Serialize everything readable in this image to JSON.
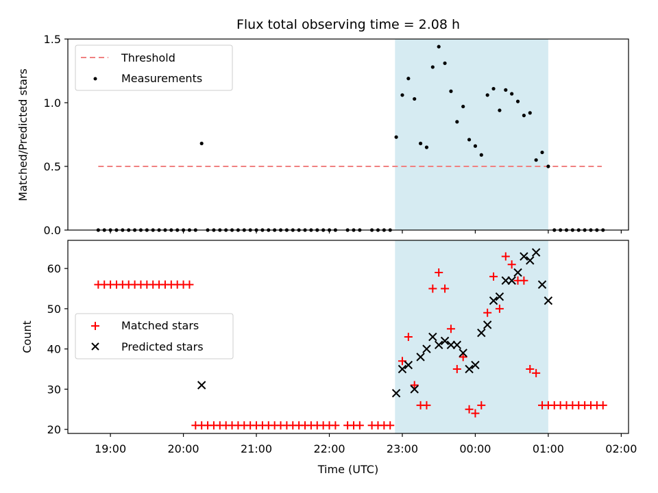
{
  "chart_data": [
    {
      "type": "scatter",
      "title": "Flux total observing time = 2.08 h",
      "xlabel": "",
      "ylabel": "Matched/Predicted stars",
      "ylim": [
        0,
        1.5
      ],
      "yticks": [
        "0.0",
        "0.5",
        "1.0",
        "1.5"
      ],
      "shaded_region": {
        "x_start": "22:54",
        "x_end": "01:00",
        "color": "#add8e6"
      },
      "legend": {
        "position": "top-left"
      },
      "series": [
        {
          "name": "Threshold",
          "style": "dashed-line",
          "color": "#f08080",
          "x": [
            "18:50",
            "01:44"
          ],
          "y": [
            0.5,
            0.5
          ]
        },
        {
          "name": "Measurements",
          "style": "dot",
          "color": "#000000",
          "x": [
            "18:50",
            "18:55",
            "19:00",
            "19:05",
            "19:10",
            "19:15",
            "19:20",
            "19:25",
            "19:30",
            "19:35",
            "19:40",
            "19:45",
            "19:50",
            "19:55",
            "20:00",
            "20:05",
            "20:10",
            "20:15",
            "20:20",
            "20:25",
            "20:30",
            "20:35",
            "20:40",
            "20:45",
            "20:50",
            "20:55",
            "21:00",
            "21:05",
            "21:10",
            "21:15",
            "21:20",
            "21:25",
            "21:30",
            "21:35",
            "21:40",
            "21:45",
            "21:50",
            "21:55",
            "22:00",
            "22:05",
            "22:15",
            "22:20",
            "22:25",
            "22:35",
            "22:40",
            "22:45",
            "22:50",
            "22:55",
            "23:00",
            "23:05",
            "23:10",
            "23:15",
            "23:20",
            "23:25",
            "23:30",
            "23:35",
            "23:40",
            "23:45",
            "23:50",
            "23:55",
            "00:00",
            "00:05",
            "00:10",
            "00:15",
            "00:20",
            "00:25",
            "00:30",
            "00:35",
            "00:40",
            "00:45",
            "00:50",
            "00:55",
            "01:00",
            "01:05",
            "01:10",
            "01:15",
            "01:20",
            "01:25",
            "01:30",
            "01:35",
            "01:40",
            "01:45"
          ],
          "y": [
            0,
            0,
            0,
            0,
            0,
            0,
            0,
            0,
            0,
            0,
            0,
            0,
            0,
            0,
            0,
            0,
            0,
            0.68,
            0,
            0,
            0,
            0,
            0,
            0,
            0,
            0,
            0,
            0,
            0,
            0,
            0,
            0,
            0,
            0,
            0,
            0,
            0,
            0,
            0,
            0,
            0,
            0,
            0,
            0,
            0,
            0,
            0,
            0.73,
            1.06,
            1.19,
            1.03,
            0.68,
            0.65,
            1.28,
            1.44,
            1.31,
            1.09,
            0.85,
            0.97,
            0.71,
            0.66,
            0.59,
            1.06,
            1.11,
            0.94,
            1.1,
            1.07,
            1.01,
            0.9,
            0.92,
            0.55,
            0.61,
            0.5,
            0,
            0,
            0,
            0,
            0,
            0,
            0,
            0,
            0
          ]
        }
      ]
    },
    {
      "type": "scatter",
      "title": "",
      "xlabel": "Time (UTC)",
      "ylabel": "Count",
      "ylim": [
        19,
        67
      ],
      "yticks": [
        "20",
        "30",
        "40",
        "50",
        "60"
      ],
      "xticks": [
        "19:00",
        "20:00",
        "21:00",
        "22:00",
        "23:00",
        "00:00",
        "01:00",
        "02:00"
      ],
      "xlim": [
        "18:25",
        "02:06"
      ],
      "shaded_region": {
        "x_start": "22:54",
        "x_end": "01:00",
        "color": "#add8e6"
      },
      "legend": {
        "position": "center-left"
      },
      "series": [
        {
          "name": "Matched stars",
          "marker": "plus",
          "color": "#ff0000",
          "x": [
            "18:50",
            "18:55",
            "19:00",
            "19:05",
            "19:10",
            "19:15",
            "19:20",
            "19:25",
            "19:30",
            "19:35",
            "19:40",
            "19:45",
            "19:50",
            "19:55",
            "20:00",
            "20:05",
            "20:10",
            "20:15",
            "20:20",
            "20:25",
            "20:30",
            "20:35",
            "20:40",
            "20:45",
            "20:50",
            "20:55",
            "21:00",
            "21:05",
            "21:10",
            "21:15",
            "21:20",
            "21:25",
            "21:30",
            "21:35",
            "21:40",
            "21:45",
            "21:50",
            "21:55",
            "22:00",
            "22:05",
            "22:15",
            "22:20",
            "22:25",
            "22:35",
            "22:40",
            "22:45",
            "22:50",
            "23:00",
            "23:05",
            "23:10",
            "23:15",
            "23:20",
            "23:25",
            "23:30",
            "23:35",
            "23:40",
            "23:45",
            "23:50",
            "23:55",
            "00:00",
            "00:05",
            "00:10",
            "00:15",
            "00:20",
            "00:25",
            "00:30",
            "00:35",
            "00:40",
            "00:45",
            "00:50",
            "00:55",
            "01:00",
            "01:05",
            "01:10",
            "01:15",
            "01:20",
            "01:25",
            "01:30",
            "01:35",
            "01:40",
            "01:45"
          ],
          "y": [
            56,
            56,
            56,
            56,
            56,
            56,
            56,
            56,
            56,
            56,
            56,
            56,
            56,
            56,
            56,
            56,
            21,
            21,
            21,
            21,
            21,
            21,
            21,
            21,
            21,
            21,
            21,
            21,
            21,
            21,
            21,
            21,
            21,
            21,
            21,
            21,
            21,
            21,
            21,
            21,
            21,
            21,
            21,
            21,
            21,
            21,
            21,
            37,
            43,
            31,
            26,
            26,
            55,
            59,
            55,
            45,
            35,
            38,
            25,
            24,
            26,
            49,
            58,
            50,
            63,
            61,
            57,
            57,
            35,
            34,
            26,
            26,
            26,
            26,
            26,
            26,
            26,
            26,
            26,
            26,
            26
          ]
        },
        {
          "name": "Predicted stars",
          "marker": "x",
          "color": "#000000",
          "x": [
            "20:15",
            "22:55",
            "23:00",
            "23:05",
            "23:10",
            "23:15",
            "23:20",
            "23:25",
            "23:30",
            "23:35",
            "23:40",
            "23:45",
            "23:50",
            "23:55",
            "00:00",
            "00:05",
            "00:10",
            "00:15",
            "00:20",
            "00:25",
            "00:30",
            "00:35",
            "00:40",
            "00:45",
            "00:50",
            "00:55",
            "01:00"
          ],
          "y": [
            31,
            29,
            35,
            36,
            30,
            38,
            40,
            43,
            41,
            42,
            41,
            41,
            39,
            35,
            36,
            44,
            46,
            52,
            53,
            57,
            57,
            59,
            63,
            62,
            64,
            56,
            52
          ]
        }
      ]
    }
  ]
}
